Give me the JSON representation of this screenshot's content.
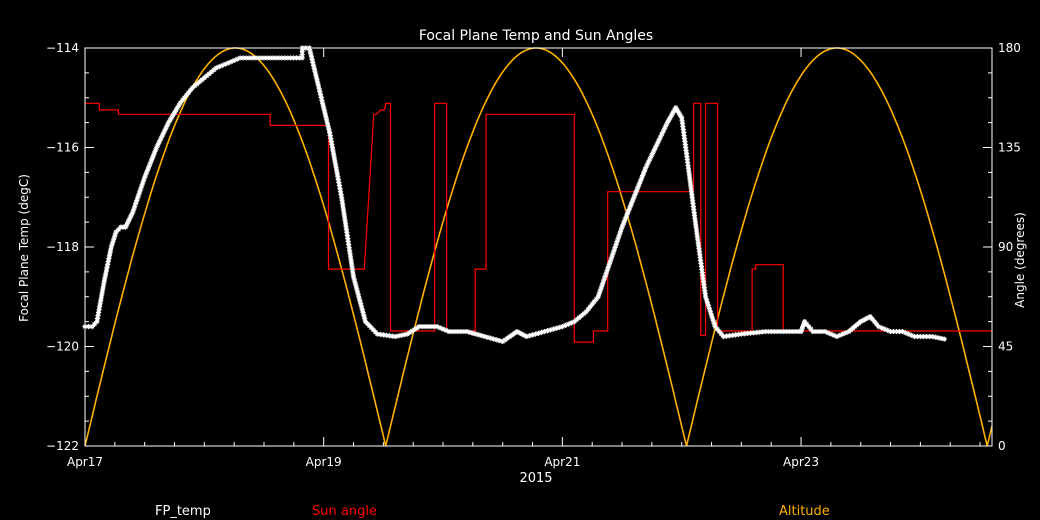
{
  "chart_data": {
    "type": "line",
    "title": "Focal Plane Temp and Sun Angles",
    "xlabel": "2015",
    "ylabel_left": "Focal Plane Temp (degC)",
    "ylabel_right": "Angle (degrees)",
    "xlim": [
      0,
      7.6
    ],
    "ylim_left": [
      -122,
      -114
    ],
    "ylim_right": [
      0,
      180
    ],
    "x_ticks": [
      {
        "label": "Apr17",
        "x": 0
      },
      {
        "label": "Apr19",
        "x": 2
      },
      {
        "label": "Apr21",
        "x": 4
      },
      {
        "label": "Apr23",
        "x": 6
      }
    ],
    "y_ticks_left": [
      "-114",
      "-116",
      "-118",
      "-120",
      "-122"
    ],
    "y_ticks_right": [
      "180",
      "135",
      "90",
      "45",
      "0"
    ],
    "legend": {
      "placement": "bottom",
      "fp_temp": "FP_temp",
      "sun_angle": "Sun angle",
      "altitude": "Altitude"
    },
    "colors": {
      "fp_temp": "#ffffff",
      "sun_angle": "#ff0000",
      "altitude": "#ffb000"
    },
    "fp_temp": [
      [
        0.0,
        -119.6
      ],
      [
        0.06,
        -119.6
      ],
      [
        0.1,
        -119.5
      ],
      [
        0.16,
        -118.7
      ],
      [
        0.22,
        -118.0
      ],
      [
        0.26,
        -117.7
      ],
      [
        0.3,
        -117.6
      ],
      [
        0.34,
        -117.6
      ],
      [
        0.4,
        -117.3
      ],
      [
        0.5,
        -116.6
      ],
      [
        0.6,
        -116.0
      ],
      [
        0.7,
        -115.5
      ],
      [
        0.8,
        -115.1
      ],
      [
        0.9,
        -114.8
      ],
      [
        1.0,
        -114.6
      ],
      [
        1.1,
        -114.4
      ],
      [
        1.2,
        -114.3
      ],
      [
        1.3,
        -114.2
      ],
      [
        1.4,
        -114.2
      ],
      [
        1.5,
        -114.2
      ],
      [
        1.6,
        -114.2
      ],
      [
        1.7,
        -114.2
      ],
      [
        1.82,
        -114.2
      ],
      [
        1.82,
        -114.0
      ],
      [
        1.88,
        -114.0
      ],
      [
        1.95,
        -114.7
      ],
      [
        2.05,
        -115.7
      ],
      [
        2.15,
        -117.0
      ],
      [
        2.25,
        -118.6
      ],
      [
        2.35,
        -119.5
      ],
      [
        2.45,
        -119.75
      ],
      [
        2.6,
        -119.8
      ],
      [
        2.7,
        -119.75
      ],
      [
        2.8,
        -119.6
      ],
      [
        2.95,
        -119.6
      ],
      [
        3.05,
        -119.7
      ],
      [
        3.2,
        -119.7
      ],
      [
        3.35,
        -119.8
      ],
      [
        3.5,
        -119.9
      ],
      [
        3.62,
        -119.7
      ],
      [
        3.7,
        -119.8
      ],
      [
        3.85,
        -119.7
      ],
      [
        4.0,
        -119.6
      ],
      [
        4.1,
        -119.5
      ],
      [
        4.2,
        -119.3
      ],
      [
        4.3,
        -119.0
      ],
      [
        4.4,
        -118.3
      ],
      [
        4.5,
        -117.6
      ],
      [
        4.6,
        -117.0
      ],
      [
        4.7,
        -116.4
      ],
      [
        4.8,
        -115.9
      ],
      [
        4.88,
        -115.5
      ],
      [
        4.95,
        -115.2
      ],
      [
        5.0,
        -115.4
      ],
      [
        5.05,
        -116.3
      ],
      [
        5.12,
        -117.6
      ],
      [
        5.2,
        -119.0
      ],
      [
        5.28,
        -119.6
      ],
      [
        5.35,
        -119.8
      ],
      [
        5.5,
        -119.75
      ],
      [
        5.7,
        -119.7
      ],
      [
        5.9,
        -119.7
      ],
      [
        6.0,
        -119.7
      ],
      [
        6.03,
        -119.5
      ],
      [
        6.1,
        -119.7
      ],
      [
        6.2,
        -119.7
      ],
      [
        6.3,
        -119.8
      ],
      [
        6.4,
        -119.7
      ],
      [
        6.45,
        -119.6
      ],
      [
        6.5,
        -119.5
      ],
      [
        6.58,
        -119.4
      ],
      [
        6.65,
        -119.6
      ],
      [
        6.75,
        -119.7
      ],
      [
        6.85,
        -119.7
      ],
      [
        6.95,
        -119.8
      ],
      [
        7.1,
        -119.8
      ],
      [
        7.2,
        -119.85
      ]
    ],
    "sun_angle": [
      [
        0.0,
        155
      ],
      [
        0.12,
        155
      ],
      [
        0.12,
        152
      ],
      [
        0.28,
        152
      ],
      [
        0.28,
        150
      ],
      [
        1.55,
        150
      ],
      [
        1.55,
        145
      ],
      [
        2.04,
        145
      ],
      [
        2.04,
        80
      ],
      [
        2.34,
        80
      ],
      [
        2.34,
        80
      ],
      [
        2.42,
        150
      ],
      [
        2.44,
        150
      ],
      [
        2.48,
        152
      ],
      [
        2.51,
        152
      ],
      [
        2.52,
        155
      ],
      [
        2.56,
        155
      ],
      [
        2.56,
        52
      ],
      [
        2.93,
        52
      ],
      [
        2.93,
        155
      ],
      [
        3.03,
        155
      ],
      [
        3.03,
        52
      ],
      [
        3.27,
        52
      ],
      [
        3.27,
        80
      ],
      [
        3.36,
        80
      ],
      [
        3.36,
        150
      ],
      [
        3.87,
        150
      ],
      [
        3.87,
        150
      ],
      [
        4.1,
        150
      ],
      [
        4.1,
        47
      ],
      [
        4.26,
        47
      ],
      [
        4.26,
        52
      ],
      [
        4.38,
        52
      ],
      [
        4.38,
        115
      ],
      [
        5.07,
        115
      ],
      [
        5.07,
        115
      ],
      [
        5.1,
        115
      ],
      [
        5.1,
        155
      ],
      [
        5.16,
        155
      ],
      [
        5.16,
        50
      ],
      [
        5.2,
        50
      ],
      [
        5.2,
        155
      ],
      [
        5.28,
        155
      ],
      [
        5.28,
        155
      ],
      [
        5.3,
        155
      ],
      [
        5.3,
        52
      ],
      [
        5.59,
        52
      ],
      [
        5.59,
        80
      ],
      [
        5.62,
        80
      ],
      [
        5.62,
        82
      ],
      [
        5.85,
        82
      ],
      [
        5.85,
        52
      ],
      [
        6.35,
        52
      ],
      [
        6.35,
        52
      ],
      [
        7.6,
        52
      ]
    ],
    "altitude": {
      "min_at": [
        0.0,
        2.52,
        5.06
      ],
      "max_at": [
        1.26,
        3.79,
        6.33
      ],
      "max": 180,
      "min": 0
    }
  }
}
